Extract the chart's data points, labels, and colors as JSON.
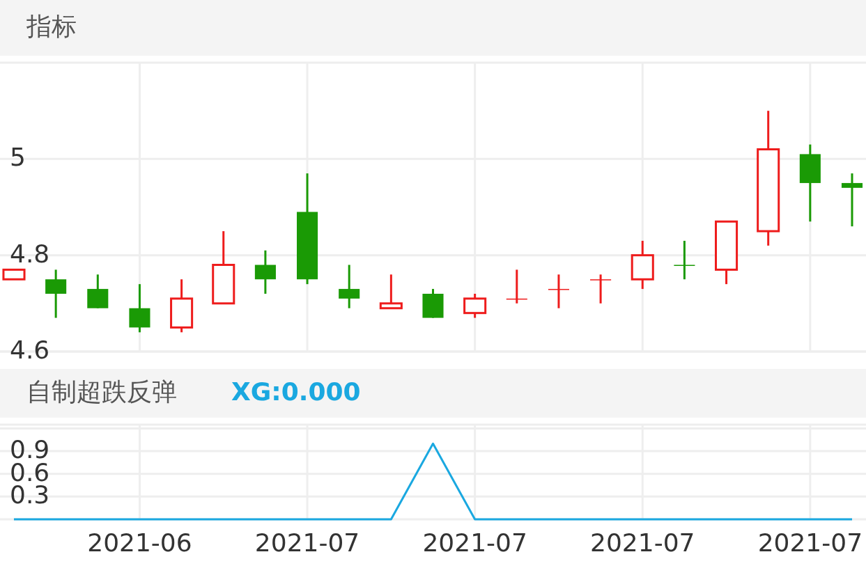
{
  "chart_data": [
    {
      "type": "candlestick",
      "title": "指标",
      "categories": [
        null,
        null,
        null,
        "2021-06",
        null,
        null,
        null,
        "2021-07",
        null,
        null,
        null,
        "2021-07",
        null,
        null,
        null,
        "2021-07",
        null,
        null,
        null,
        "2021-07",
        null
      ],
      "ohlc": [
        [
          4.75,
          4.77,
          4.75,
          4.77
        ],
        [
          4.75,
          4.77,
          4.67,
          4.72
        ],
        [
          4.73,
          4.76,
          4.69,
          4.69
        ],
        [
          4.69,
          4.74,
          4.64,
          4.65
        ],
        [
          4.65,
          4.75,
          4.64,
          4.71
        ],
        [
          4.7,
          4.85,
          4.7,
          4.78
        ],
        [
          4.78,
          4.81,
          4.72,
          4.75
        ],
        [
          4.89,
          4.97,
          4.74,
          4.75
        ],
        [
          4.73,
          4.78,
          4.69,
          4.71
        ],
        [
          4.69,
          4.76,
          4.69,
          4.7
        ],
        [
          4.72,
          4.73,
          4.67,
          4.67
        ],
        [
          4.68,
          4.72,
          4.67,
          4.71
        ],
        [
          4.71,
          4.77,
          4.7,
          4.71
        ],
        [
          4.73,
          4.76,
          4.69,
          4.73
        ],
        [
          4.75,
          4.76,
          4.7,
          4.75
        ],
        [
          4.75,
          4.83,
          4.73,
          4.8
        ],
        [
          4.78,
          4.83,
          4.75,
          4.78
        ],
        [
          4.77,
          4.87,
          4.74,
          4.87
        ],
        [
          4.85,
          5.1,
          4.82,
          5.02
        ],
        [
          5.01,
          5.03,
          4.87,
          4.95
        ],
        [
          4.95,
          4.97,
          4.86,
          4.94
        ]
      ],
      "colors": [
        "#ee1c1c",
        "#1a9a05",
        "#1a9a05",
        "#1a9a05",
        "#ee1c1c",
        "#ee1c1c",
        "#1a9a05",
        "#1a9a05",
        "#1a9a05",
        "#ee1c1c",
        "#1a9a05",
        "#ee1c1c",
        "#ee1c1c",
        "#ee1c1c",
        "#ee1c1c",
        "#ee1c1c",
        "#1a9a05",
        "#ee1c1c",
        "#ee1c1c",
        "#1a9a05",
        "#1a9a05"
      ],
      "ylim": [
        4.6,
        5.2
      ],
      "yticks": [
        4.6,
        4.8,
        5
      ],
      "grid": true,
      "tick_labels": "y"
    },
    {
      "type": "line",
      "title": "自制超跌反弹",
      "categories": [
        null,
        null,
        null,
        "2021-06",
        null,
        null,
        null,
        "2021-07",
        null,
        null,
        null,
        "2021-07",
        null,
        null,
        null,
        "2021-07",
        null,
        null,
        null,
        "2021-07",
        null
      ],
      "series": [
        {
          "name": "XG:0.000",
          "color": "#1aa8e0",
          "values": [
            0,
            0,
            0,
            0,
            0,
            0,
            0,
            0,
            0,
            0,
            1,
            0,
            0,
            0,
            0,
            0,
            0,
            0,
            0,
            0,
            0
          ]
        }
      ],
      "ylim": [
        0,
        1.25
      ],
      "yticks": [
        0.3,
        0.6,
        0.9,
        {
          "value": 1.2,
          "label": null
        }
      ],
      "grid": true
    }
  ]
}
